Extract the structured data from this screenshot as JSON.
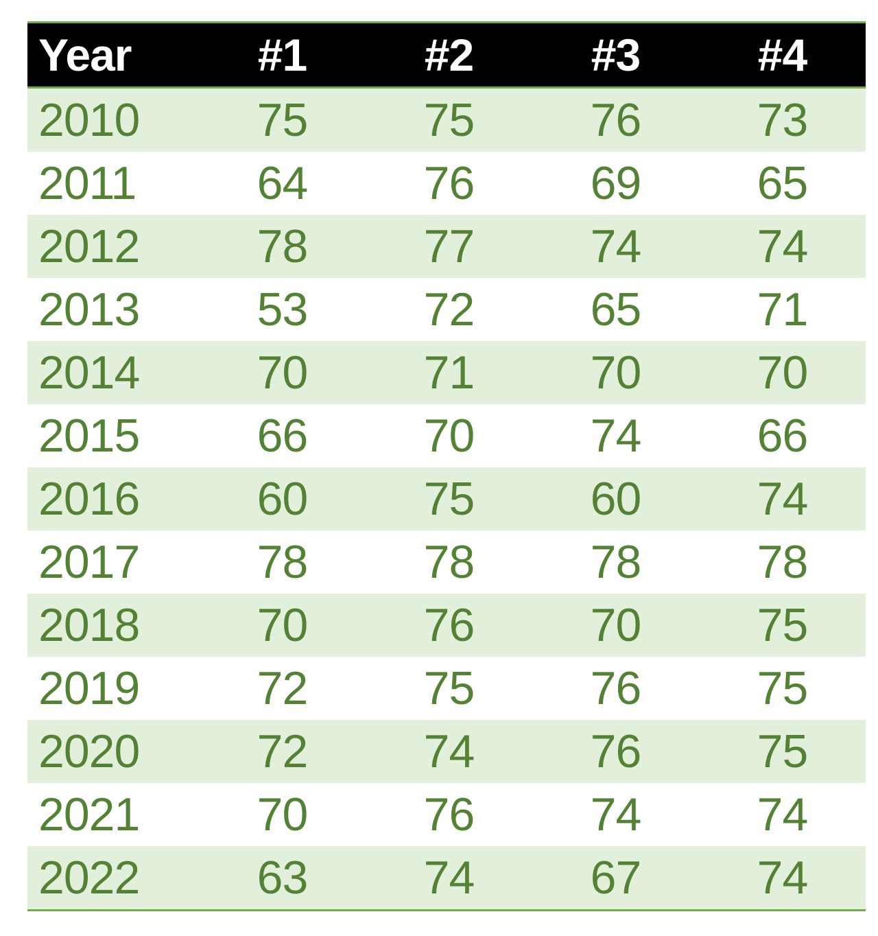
{
  "colors": {
    "header_bg": "#000000",
    "header_text": "#ffffff",
    "data_text": "#548235",
    "band_fill": "#e2efda",
    "accent_border": "#70ad47"
  },
  "chart_data": {
    "type": "table",
    "title": "",
    "columns": [
      "Year",
      "#1",
      "#2",
      "#3",
      "#4"
    ],
    "rows": [
      {
        "year": "2010",
        "values": [
          "75",
          "75",
          "76",
          "73"
        ]
      },
      {
        "year": "2011",
        "values": [
          "64",
          "76",
          "69",
          "65"
        ]
      },
      {
        "year": "2012",
        "values": [
          "78",
          "77",
          "74",
          "74"
        ]
      },
      {
        "year": "2013",
        "values": [
          "53",
          "72",
          "65",
          "71"
        ]
      },
      {
        "year": "2014",
        "values": [
          "70",
          "71",
          "70",
          "70"
        ]
      },
      {
        "year": "2015",
        "values": [
          "66",
          "70",
          "74",
          "66"
        ]
      },
      {
        "year": "2016",
        "values": [
          "60",
          "75",
          "60",
          "74"
        ]
      },
      {
        "year": "2017",
        "values": [
          "78",
          "78",
          "78",
          "78"
        ]
      },
      {
        "year": "2018",
        "values": [
          "70",
          "76",
          "70",
          "75"
        ]
      },
      {
        "year": "2019",
        "values": [
          "72",
          "75",
          "76",
          "75"
        ]
      },
      {
        "year": "2020",
        "values": [
          "72",
          "74",
          "76",
          "75"
        ]
      },
      {
        "year": "2021",
        "values": [
          "70",
          "76",
          "74",
          "74"
        ]
      },
      {
        "year": "2022",
        "values": [
          "63",
          "74",
          "67",
          "74"
        ]
      }
    ]
  }
}
